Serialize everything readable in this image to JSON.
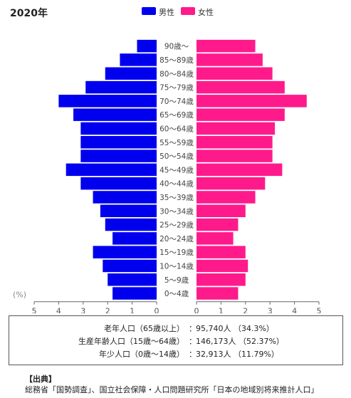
{
  "year_label": "2020年",
  "legend": {
    "male": {
      "label": "男性",
      "color": "#0000ee"
    },
    "female": {
      "label": "女性",
      "color": "#ff1a8c"
    }
  },
  "chart_data": {
    "type": "bar",
    "orientation": "horizontal-population-pyramid",
    "unit_label": "(%)",
    "categories": [
      "90歳〜",
      "85〜89歳",
      "80〜84歳",
      "75〜79歳",
      "70〜74歳",
      "65〜69歳",
      "60〜64歳",
      "55〜59歳",
      "50〜54歳",
      "45〜49歳",
      "40〜44歳",
      "35〜39歳",
      "30〜34歳",
      "25〜29歳",
      "20〜24歳",
      "15〜19歳",
      "10〜14歳",
      "5〜9歳",
      "0〜4歳"
    ],
    "series": [
      {
        "name": "男性",
        "values": [
          0.8,
          1.5,
          2.1,
          2.9,
          4.0,
          3.4,
          3.1,
          3.1,
          3.1,
          3.7,
          3.1,
          2.6,
          2.3,
          2.1,
          1.8,
          2.6,
          2.2,
          2.0,
          1.8
        ]
      },
      {
        "name": "女性",
        "values": [
          2.4,
          2.7,
          3.1,
          3.6,
          4.5,
          3.6,
          3.2,
          3.1,
          3.1,
          3.5,
          2.8,
          2.4,
          2.0,
          1.7,
          1.5,
          2.0,
          2.1,
          2.0,
          1.7
        ]
      }
    ],
    "xlim": [
      0,
      5
    ],
    "xticks": [
      "5",
      "4",
      "3",
      "2",
      "1",
      "0",
      "0",
      "1",
      "2",
      "3",
      "4",
      "5"
    ],
    "grid": false
  },
  "summary": [
    {
      "label": "老年人口（65歳以上）",
      "value": "95,740人 （34.3%）"
    },
    {
      "label": "生産年齢人口（15歳〜64歳）",
      "value": "146,173人 （52.37%）"
    },
    {
      "label": "年少人口（0歳〜14歳）",
      "value": "32,913人 （11.79%）"
    }
  ],
  "summary_colon": "：",
  "source": {
    "title": "【出典】",
    "text": "総務省「国勢調査」、国立社会保障・人口問題研究所「日本の地域別将来推計人口」"
  }
}
